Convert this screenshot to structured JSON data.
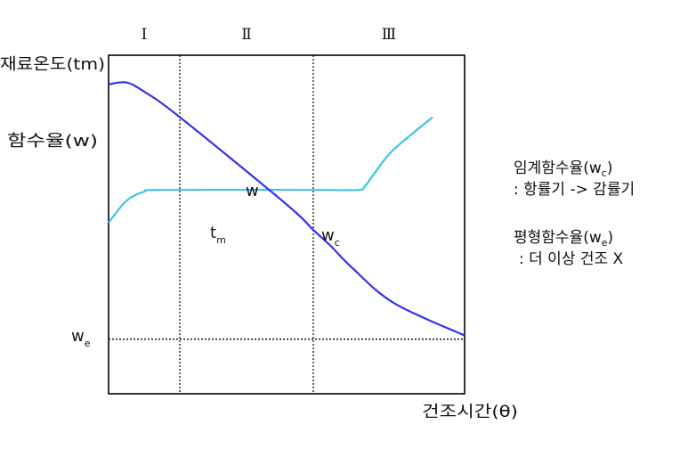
{
  "chart_data": {
    "type": "line",
    "x_label": "건조시간(θ)",
    "y_labels": [
      "재료온도(tm)",
      "함수율(w)"
    ],
    "periods": [
      "Ⅰ",
      "Ⅱ",
      "Ⅲ"
    ],
    "series": [
      {
        "name": "w",
        "color": "#3333ee",
        "points": [
          [
            0,
            70
          ],
          [
            5,
            70.5
          ],
          [
            10,
            68
          ],
          [
            20,
            61
          ],
          [
            50,
            37
          ],
          [
            57.5,
            30
          ],
          [
            62.5,
            25.5
          ],
          [
            68,
            20
          ],
          [
            80,
            10
          ],
          [
            100,
            1
          ]
        ]
      },
      {
        "name": "tm",
        "color": "#3fc4e8",
        "points": [
          [
            0,
            32
          ],
          [
            5,
            38
          ],
          [
            10,
            40.5
          ],
          [
            15,
            41
          ],
          [
            57.5,
            41
          ],
          [
            70,
            41
          ],
          [
            72,
            42
          ],
          [
            75,
            46
          ],
          [
            80,
            52
          ],
          [
            91,
            61
          ]
        ]
      }
    ],
    "annotations": {
      "w_curve": {
        "base": "w",
        "sub": ""
      },
      "tm_curve": {
        "base": "t",
        "sub": "m"
      },
      "critical_point": {
        "base": "w",
        "sub": "c"
      },
      "equilibrium_line": {
        "base": "w",
        "sub": "e"
      }
    },
    "equilibrium_moisture": 0,
    "critical_point": [
      57.5,
      30
    ],
    "period_boundaries": [
      20,
      57.5
    ],
    "xlim": [
      0,
      100
    ],
    "ylim": [
      -15,
      78
    ],
    "grid": false
  },
  "notes": {
    "critical": {
      "title": "임계함수율(w",
      "sub": "c",
      "close": ")",
      "desc": ": 항률기 -> 감률기"
    },
    "equilibrium": {
      "title": "평형함수율(w",
      "sub": "e",
      "close": ")",
      "desc": ": 더 이상 건조 X"
    }
  }
}
